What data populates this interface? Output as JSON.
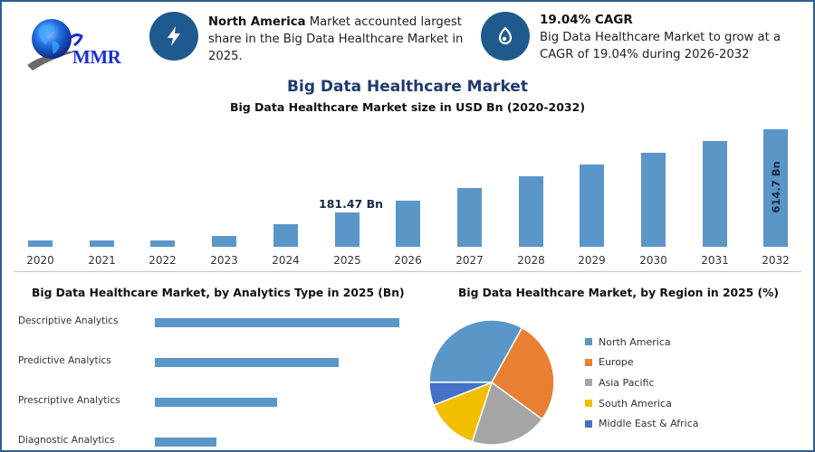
{
  "header": {
    "logo": {
      "text": "MMR",
      "icon": "globe-logo-icon"
    },
    "card_region": {
      "icon": "lightning-bolt-icon",
      "bold": "North America",
      "text": " Market accounted largest share in the Big Data Healthcare Market in 2025."
    },
    "card_cagr": {
      "icon": "growth-drop-icon",
      "title": "19.04% CAGR",
      "text": "Big Data Healthcare Market to grow at a CAGR of 19.04% during 2026-2032"
    }
  },
  "titles": {
    "main": "Big Data Healthcare Market",
    "sub": "Big Data Healthcare Market size in USD Bn (2020-2032)",
    "analytics": "Big Data Healthcare Market, by Analytics Type in 2025 (Bn)",
    "region": "Big Data Healthcare Market, by Region in 2025 (%)"
  },
  "colors": {
    "frame": "#2d5f8b",
    "bar": "#5b96c8",
    "icon_bg": "#1f5a8f",
    "title": "#1f3a6e",
    "north_america": "#5b96c8",
    "europe": "#e97f33",
    "asia_pacific": "#a5a5a5",
    "south_america": "#f2be00",
    "middle_east_africa": "#4472c4"
  },
  "chart_data": [
    {
      "type": "bar",
      "title": "Big Data Healthcare Market size in USD Bn (2020-2032)",
      "xlabel": "",
      "ylabel": "USD Bn",
      "grid": false,
      "categories": [
        "2020",
        "2021",
        "2022",
        "2023",
        "2024",
        "2025",
        "2026",
        "2027",
        "2028",
        "2029",
        "2030",
        "2031",
        "2032"
      ],
      "values": [
        33,
        33,
        33,
        57,
        120,
        181.47,
        243,
        305,
        367,
        430,
        492,
        553,
        614.7
      ],
      "annotations": [
        {
          "category": "2025",
          "label": "181.47 Bn"
        },
        {
          "category": "2032",
          "label": "614.7 Bn",
          "orientation": "vertical"
        }
      ],
      "ylim": [
        0,
        650
      ]
    },
    {
      "type": "bar",
      "orientation": "horizontal",
      "title": "Big Data Healthcare Market, by Analytics Type in 2025 (Bn)",
      "categories": [
        "Descriptive Analytics",
        "Predictive Analytics",
        "Prescriptive Analytics",
        "Diagnostic Analytics"
      ],
      "values": [
        60,
        45,
        30,
        15
      ],
      "grid": false
    },
    {
      "type": "pie",
      "title": "Big Data Healthcare Market, by Region in 2025 (%)",
      "categories": [
        "North America",
        "Europe",
        "Asia Pacific",
        "South America",
        "Middle East & Africa"
      ],
      "values": [
        33,
        27,
        20,
        14,
        6
      ],
      "legend_position": "right"
    }
  ],
  "column_chart": {
    "bars": [
      {
        "year": "2020",
        "value": 33
      },
      {
        "year": "2021",
        "value": 33
      },
      {
        "year": "2022",
        "value": 33
      },
      {
        "year": "2023",
        "value": 57
      },
      {
        "year": "2024",
        "value": 120
      },
      {
        "year": "2025",
        "value": 181.47
      },
      {
        "year": "2026",
        "value": 243
      },
      {
        "year": "2027",
        "value": 305
      },
      {
        "year": "2028",
        "value": 367
      },
      {
        "year": "2029",
        "value": 430
      },
      {
        "year": "2030",
        "value": 492
      },
      {
        "year": "2031",
        "value": 553
      },
      {
        "year": "2032",
        "value": 614.7
      }
    ],
    "label_2025": "181.47 Bn",
    "label_2032": "614.7 Bn"
  },
  "analytics_chart": {
    "items": [
      {
        "label": "Descriptive Analytics",
        "value": 60
      },
      {
        "label": "Predictive Analytics",
        "value": 45
      },
      {
        "label": "Prescriptive Analytics",
        "value": 30
      },
      {
        "label": "Diagnostic Analytics",
        "value": 15
      }
    ]
  },
  "region_chart": {
    "legend": [
      {
        "label": "North America",
        "color": "#5b96c8"
      },
      {
        "label": "Europe",
        "color": "#e97f33"
      },
      {
        "label": "Asia Pacific",
        "color": "#a5a5a5"
      },
      {
        "label": "South America",
        "color": "#f2be00"
      },
      {
        "label": "Middle East & Africa",
        "color": "#4472c4"
      }
    ]
  }
}
